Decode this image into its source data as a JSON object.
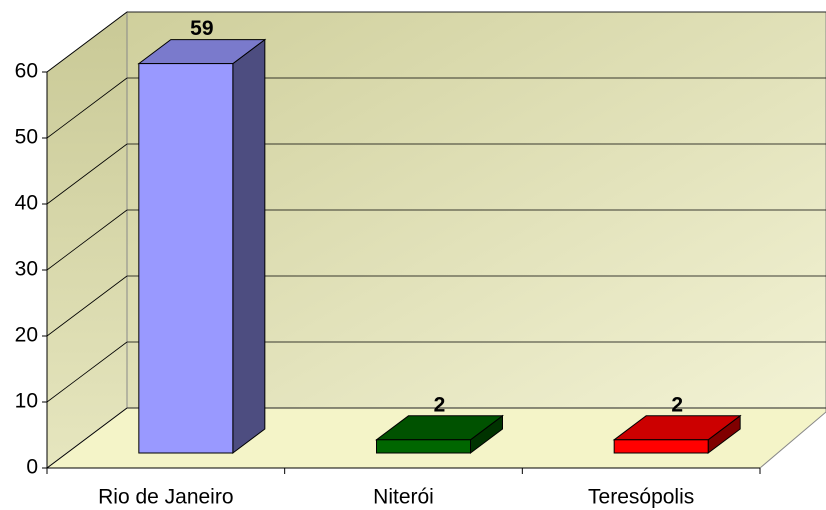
{
  "chart_data": {
    "type": "bar3d",
    "categories": [
      "Rio de Janeiro",
      "Niterói",
      "Teresópolis"
    ],
    "values": [
      59,
      2,
      2
    ],
    "colors": [
      "#9999ff",
      "#006600",
      "#ff0000"
    ],
    "ylim": [
      0,
      60
    ],
    "yticks": [
      0,
      10,
      20,
      30,
      40,
      50,
      60
    ],
    "grid": true
  }
}
